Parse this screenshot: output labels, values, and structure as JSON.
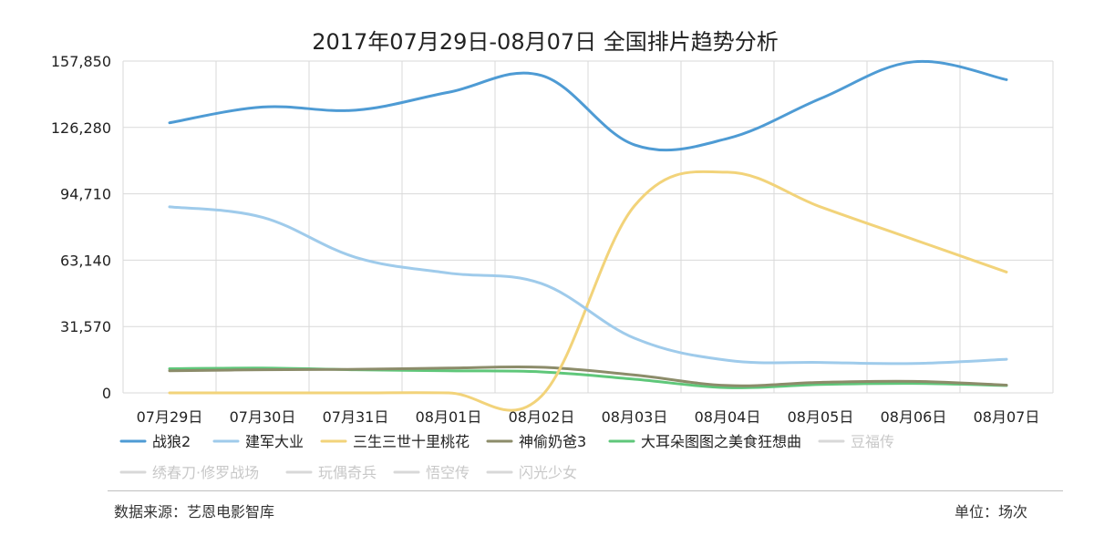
{
  "chart_data": {
    "type": "line",
    "title": "2017年07月29日-08月07日 全国排片趋势分析",
    "categories": [
      "07月29日",
      "07月30日",
      "07月31日",
      "08月01日",
      "08月02日",
      "08月03日",
      "08月04日",
      "08月05日",
      "08月06日",
      "08月07日"
    ],
    "y_ticks": [
      "0",
      "31,570",
      "63,140",
      "94,710",
      "126,280",
      "157,850"
    ],
    "ylim": [
      0,
      157850
    ],
    "grid": true,
    "legend_position": "bottom",
    "series": [
      {
        "name": "战狼2",
        "color": "#4e9bd4",
        "values": [
          128500,
          136000,
          134500,
          143000,
          151000,
          118000,
          121000,
          140000,
          157500,
          149000
        ],
        "visible": true
      },
      {
        "name": "建军大业",
        "color": "#9fcbeb",
        "values": [
          88500,
          83500,
          64500,
          57000,
          52000,
          26000,
          15500,
          14500,
          14000,
          16000
        ],
        "visible": true
      },
      {
        "name": "三生三世十里桃花",
        "color": "#f2d37a",
        "values": [
          0,
          0,
          0,
          0,
          -1500,
          89000,
          105000,
          88500,
          73000,
          57500
        ],
        "visible": true
      },
      {
        "name": "神偷奶爸3",
        "color": "#8c8c6a",
        "values": [
          10500,
          11000,
          11200,
          11800,
          12200,
          8500,
          3500,
          5000,
          5500,
          3700
        ],
        "visible": true
      },
      {
        "name": "大耳朵图图之美食狂想曲",
        "color": "#5fc77a",
        "values": [
          11500,
          11800,
          11000,
          10500,
          10000,
          6500,
          2500,
          4000,
          4500,
          3500
        ],
        "visible": true
      },
      {
        "name": "豆福传",
        "color": "#d8d8d8",
        "visible": false
      },
      {
        "name": "绣春刀·修罗战场",
        "color": "#d8d8d8",
        "visible": false
      },
      {
        "name": "玩偶奇兵",
        "color": "#d8d8d8",
        "visible": false
      },
      {
        "name": "悟空传",
        "color": "#d8d8d8",
        "visible": false
      },
      {
        "name": "闪光少女",
        "color": "#d8d8d8",
        "visible": false
      }
    ]
  },
  "footer": {
    "source": "数据来源：艺恩电影智库",
    "unit": "单位：场次"
  }
}
